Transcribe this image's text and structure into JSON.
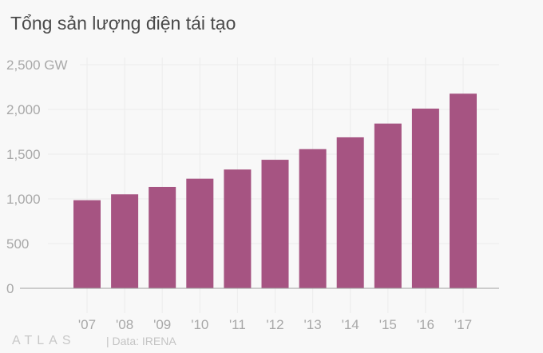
{
  "chart_data": {
    "type": "bar",
    "title": "Tổng sản lượng điện tái tạo",
    "categories": [
      "'07",
      "'08",
      "'09",
      "'10",
      "'11",
      "'12",
      "'13",
      "'14",
      "'15",
      "'16",
      "'17"
    ],
    "values": [
      985,
      1051,
      1134,
      1226,
      1328,
      1437,
      1556,
      1688,
      1842,
      2009,
      2176
    ],
    "ylim": [
      0,
      2500
    ],
    "yticks": [
      0,
      500,
      1000,
      1500,
      2000,
      2500
    ],
    "ytick_labels": [
      "0",
      "500",
      "1,000",
      "1,500",
      "2,000",
      "2,500 GW"
    ],
    "grid": true,
    "bar_color": "#a65482"
  },
  "footer": {
    "logo": "ATLAS",
    "source": "| Data: IRENA"
  }
}
